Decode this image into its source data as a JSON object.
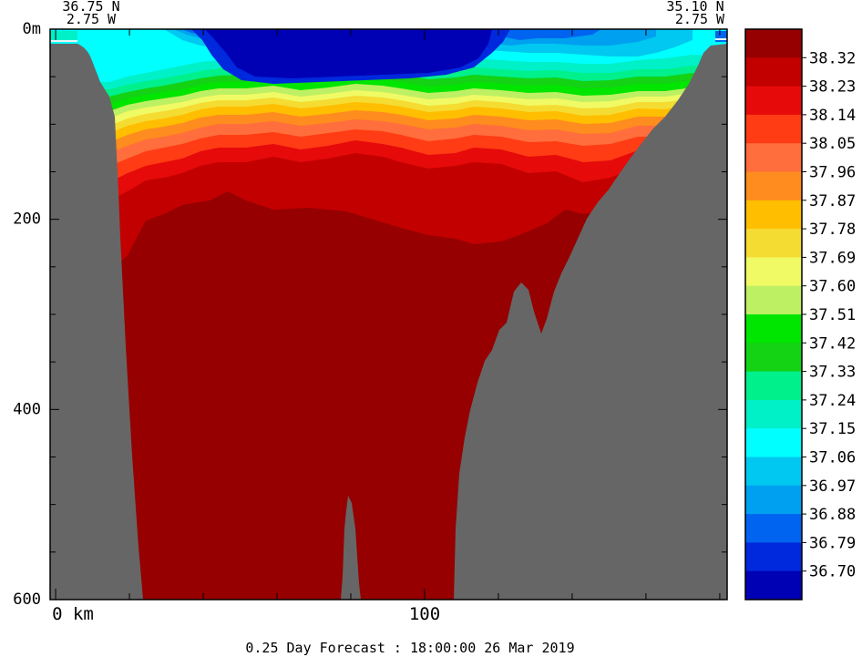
{
  "chart_data": {
    "type": "heatmap",
    "title": "",
    "xlabel": "",
    "ylabel": "",
    "corner_labels": {
      "left_lat": "36.75 N",
      "left_lon": "2.75 W",
      "right_lat": "35.10 N",
      "right_lon": "2.75 W"
    },
    "x_unit_label": "0 km",
    "x_ticks": [
      {
        "value": 0,
        "label": "0 km"
      },
      {
        "value": 100,
        "label": "100"
      }
    ],
    "xlim": [
      -1.5,
      182
    ],
    "y_ticks": [
      {
        "value": 0,
        "label": "0m"
      },
      {
        "value": 200,
        "label": "200"
      },
      {
        "value": 400,
        "label": "400"
      },
      {
        "value": 600,
        "label": "600"
      }
    ],
    "ylim": [
      600,
      0
    ],
    "colorbar": {
      "levels": [
        "38.32",
        "38.23",
        "38.14",
        "38.05",
        "37.96",
        "37.87",
        "37.78",
        "37.69",
        "37.60",
        "37.51",
        "37.42",
        "37.33",
        "37.24",
        "37.15",
        "37.06",
        "36.97",
        "36.88",
        "36.79",
        "36.70"
      ],
      "colors": [
        "#960000",
        "#c30000",
        "#e60a0a",
        "#ff3c14",
        "#ff6e3c",
        "#ff8c1e",
        "#ffbe00",
        "#f5dc32",
        "#f0fa64",
        "#bef064",
        "#00e600",
        "#14d214",
        "#00f08c",
        "#00f0c8",
        "#00ffff",
        "#00c8f0",
        "#00a0f0",
        "#0064f0",
        "#0028dc",
        "#0000b4"
      ]
    },
    "footer": "0.25 Day Forecast : 18:00:00  26 Mar 2019"
  }
}
